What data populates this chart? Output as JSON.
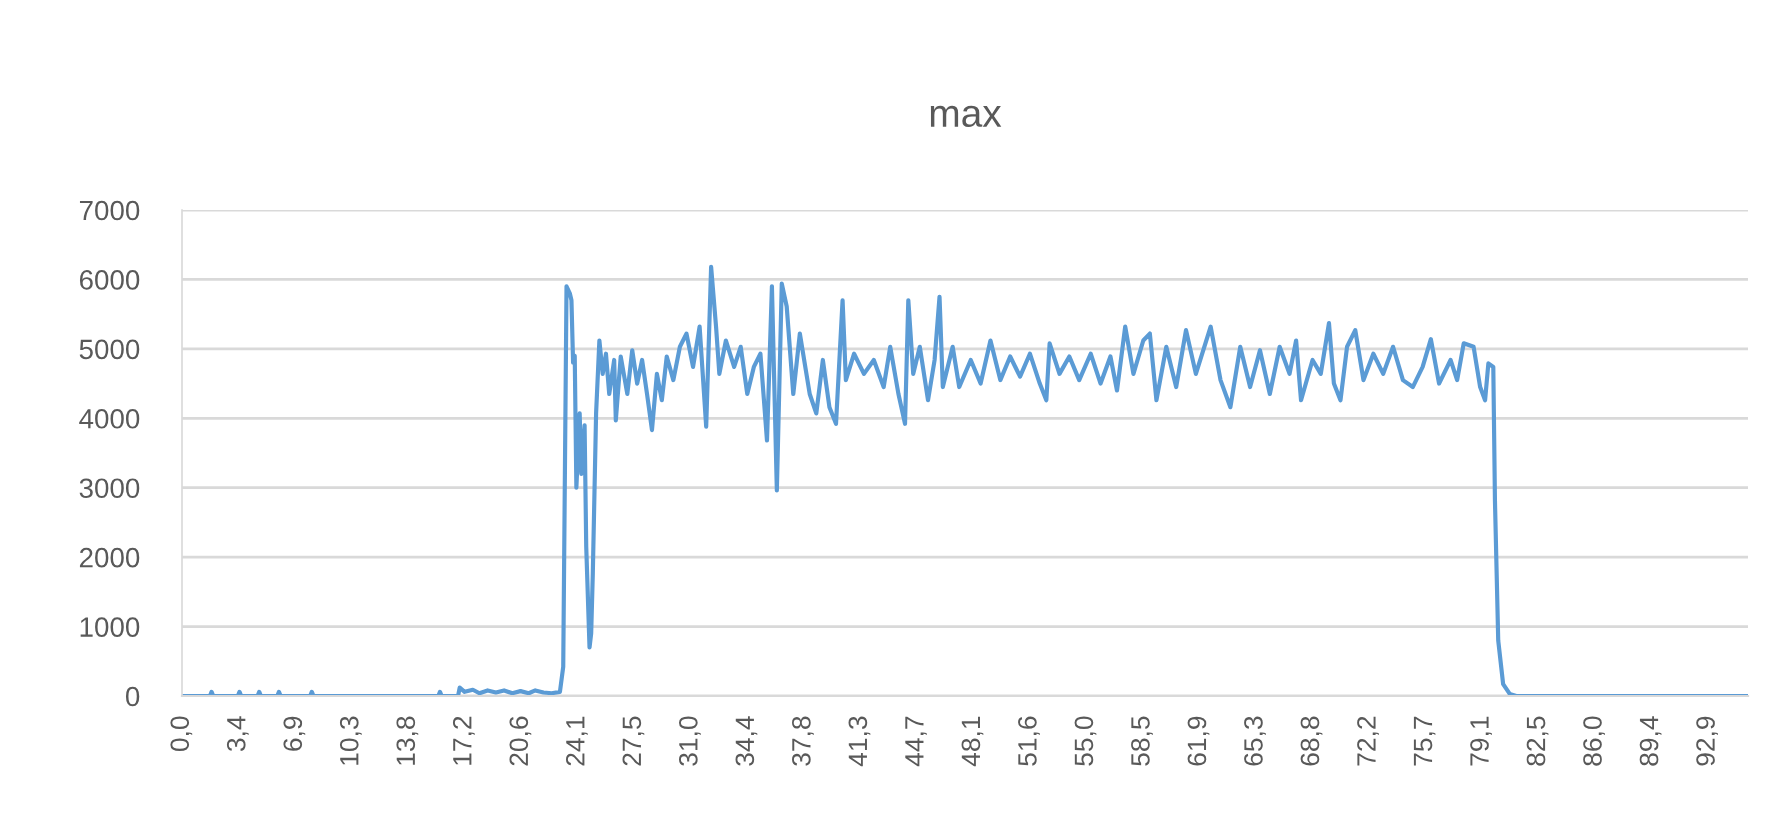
{
  "chart_data": {
    "type": "line",
    "title": "max",
    "x": [
      0.0,
      1.7,
      1.8,
      1.9,
      3.4,
      3.5,
      3.6,
      4.6,
      4.7,
      4.8,
      5.8,
      5.9,
      6.0,
      7.8,
      7.9,
      8.0,
      15.6,
      15.7,
      15.8,
      16.8,
      16.9,
      17.2,
      17.7,
      18.1,
      18.6,
      19.1,
      19.6,
      20.1,
      20.6,
      21.1,
      21.5,
      22.0,
      22.5,
      23.0,
      23.2,
      23.4,
      23.6,
      23.7,
      23.8,
      23.9,
      24.0,
      24.2,
      24.3,
      24.5,
      24.6,
      24.8,
      24.9,
      25.0,
      25.2,
      25.4,
      25.6,
      25.8,
      26.0,
      26.3,
      26.4,
      26.7,
      27.1,
      27.4,
      27.7,
      28.0,
      28.3,
      28.6,
      28.9,
      29.2,
      29.5,
      29.9,
      30.3,
      30.7,
      31.1,
      31.5,
      31.9,
      32.2,
      32.5,
      32.7,
      33.1,
      33.6,
      34.0,
      34.4,
      34.8,
      35.2,
      35.6,
      35.9,
      36.2,
      36.5,
      36.8,
      37.2,
      37.6,
      38.2,
      38.6,
      39.0,
      39.4,
      39.8,
      40.2,
      40.4,
      40.9,
      41.5,
      42.1,
      42.7,
      43.1,
      43.6,
      44.0,
      44.2,
      44.5,
      44.9,
      45.4,
      45.8,
      46.1,
      46.3,
      46.9,
      47.3,
      48.0,
      48.6,
      49.2,
      49.8,
      50.4,
      51.0,
      51.6,
      52.2,
      52.6,
      52.8,
      53.4,
      54.0,
      54.6,
      55.3,
      55.9,
      56.5,
      56.9,
      57.4,
      57.9,
      58.5,
      58.9,
      59.3,
      59.9,
      60.5,
      61.1,
      61.7,
      62.6,
      63.2,
      63.8,
      64.4,
      65.0,
      65.6,
      66.2,
      66.8,
      67.4,
      67.8,
      68.1,
      68.8,
      69.3,
      69.8,
      70.1,
      70.5,
      70.9,
      71.4,
      71.9,
      72.5,
      73.1,
      73.7,
      74.3,
      74.9,
      75.5,
      76.0,
      76.5,
      77.2,
      77.6,
      78.0,
      78.6,
      79.0,
      79.3,
      79.5,
      79.8,
      79.9,
      80.1,
      80.4,
      80.8,
      81.2,
      95.2
    ],
    "series": [
      {
        "color": "#5b9bd5",
        "values": [
          0,
          0,
          60,
          0,
          0,
          60,
          0,
          0,
          60,
          0,
          0,
          60,
          0,
          0,
          60,
          0,
          0,
          60,
          0,
          0,
          120,
          60,
          90,
          40,
          80,
          50,
          80,
          40,
          70,
          40,
          80,
          50,
          40,
          60,
          420,
          5900,
          5800,
          5700,
          4800,
          4900,
          3000,
          4070,
          3200,
          3900,
          2150,
          700,
          900,
          1760,
          4070,
          5120,
          4640,
          4930,
          4350,
          4840,
          3970,
          4890,
          4350,
          4980,
          4500,
          4840,
          4350,
          3830,
          4640,
          4260,
          4890,
          4550,
          5030,
          5220,
          4740,
          5320,
          3880,
          6180,
          5320,
          4640,
          5120,
          4740,
          5030,
          4350,
          4740,
          4930,
          3680,
          5900,
          2960,
          5940,
          5610,
          4350,
          5220,
          4350,
          4070,
          4840,
          4160,
          3920,
          5700,
          4550,
          4930,
          4640,
          4840,
          4450,
          5030,
          4350,
          3920,
          5700,
          4640,
          5030,
          4260,
          4840,
          5750,
          4450,
          5030,
          4450,
          4840,
          4500,
          5120,
          4550,
          4890,
          4600,
          4930,
          4500,
          4260,
          5080,
          4640,
          4890,
          4550,
          4930,
          4500,
          4890,
          4400,
          5320,
          4640,
          5120,
          5220,
          4260,
          5030,
          4450,
          5270,
          4640,
          5320,
          4550,
          4160,
          5030,
          4450,
          4980,
          4350,
          5030,
          4640,
          5120,
          4260,
          4840,
          4640,
          5370,
          4500,
          4260,
          5030,
          5270,
          4550,
          4930,
          4640,
          5030,
          4550,
          4450,
          4740,
          5140,
          4500,
          4840,
          4550,
          5080,
          5030,
          4450,
          4260,
          4790,
          4740,
          2820,
          800,
          170,
          30,
          0,
          0
        ]
      }
    ],
    "xlim": [
      0,
      95.3
    ],
    "xticks": [
      {
        "value": 0,
        "label": "0,0"
      },
      {
        "value": 3.439,
        "label": "3,4"
      },
      {
        "value": 6.878,
        "label": "6,9"
      },
      {
        "value": 10.317,
        "label": "10,3"
      },
      {
        "value": 13.756,
        "label": "13,8"
      },
      {
        "value": 17.195,
        "label": "17,2"
      },
      {
        "value": 20.634,
        "label": "20,6"
      },
      {
        "value": 24.073,
        "label": "24,1"
      },
      {
        "value": 27.512,
        "label": "27,5"
      },
      {
        "value": 30.951,
        "label": "31,0"
      },
      {
        "value": 34.39,
        "label": "34,4"
      },
      {
        "value": 37.829,
        "label": "37,8"
      },
      {
        "value": 41.268,
        "label": "41,3"
      },
      {
        "value": 44.707,
        "label": "44,7"
      },
      {
        "value": 48.146,
        "label": "48,1"
      },
      {
        "value": 51.585,
        "label": "51,6"
      },
      {
        "value": 55.024,
        "label": "55,0"
      },
      {
        "value": 58.463,
        "label": "58,5"
      },
      {
        "value": 61.902,
        "label": "61,9"
      },
      {
        "value": 65.341,
        "label": "65,3"
      },
      {
        "value": 68.78,
        "label": "68,8"
      },
      {
        "value": 72.219,
        "label": "72,2"
      },
      {
        "value": 75.658,
        "label": "75,7"
      },
      {
        "value": 79.097,
        "label": "79,1"
      },
      {
        "value": 82.536,
        "label": "82,5"
      },
      {
        "value": 85.975,
        "label": "86,0"
      },
      {
        "value": 89.414,
        "label": "89,4"
      },
      {
        "value": 92.853,
        "label": "92,9"
      }
    ],
    "ylim": [
      0,
      7000
    ],
    "yticks": [
      0,
      1000,
      2000,
      3000,
      4000,
      5000,
      6000,
      7000
    ],
    "grid": "y",
    "marker": "none",
    "line_style": "solid"
  }
}
